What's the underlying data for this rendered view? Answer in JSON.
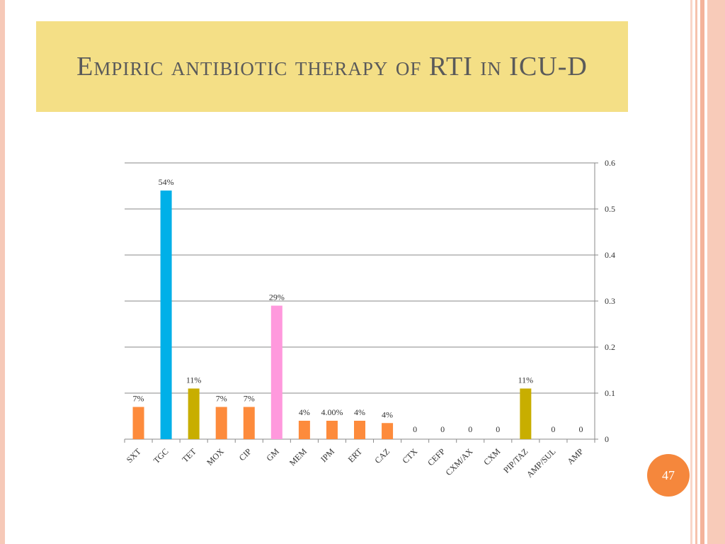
{
  "slide": {
    "title": "Empiric antibiotic therapy of RTI in ICU-D",
    "page_number": "47"
  },
  "colors": {
    "title_band": "#f4df86",
    "orange": "#fd8b3c",
    "blue": "#00b0e8",
    "olive": "#c8ae00",
    "pink": "#ff99dd",
    "badge": "#f5873c"
  },
  "chart_data": {
    "type": "bar",
    "title": "",
    "xlabel": "",
    "ylabel": "",
    "ylim": [
      0,
      0.6
    ],
    "y_ticks": [
      "0",
      "0.1",
      "0.2",
      "0.3",
      "0.4",
      "0.5",
      "0.6"
    ],
    "y_axis_side": "right",
    "gridlines": true,
    "categories": [
      "SXT",
      "TGC",
      "TET",
      "MOX",
      "CIP",
      "GM",
      "MEM",
      "IPM",
      "ERT",
      "CAZ",
      "CTX",
      "CEFP",
      "CXM/AX",
      "CXM",
      "PIP/TAZ",
      "AMP/SUL",
      "AMP"
    ],
    "values": [
      0.07,
      0.54,
      0.11,
      0.07,
      0.07,
      0.29,
      0.04,
      0.04,
      0.04,
      0.035,
      0,
      0,
      0,
      0,
      0.11,
      0,
      0
    ],
    "data_labels": [
      "7%",
      "54%",
      "11%",
      "7%",
      "7%",
      "29%",
      "4%",
      "4.00%",
      "4%",
      "4%",
      "0",
      "0",
      "0",
      "0",
      "11%",
      "0",
      "0"
    ],
    "bar_colors": [
      "orange",
      "blue",
      "olive",
      "orange",
      "orange",
      "pink",
      "orange",
      "orange",
      "orange",
      "orange",
      "orange",
      "orange",
      "orange",
      "orange",
      "olive",
      "orange",
      "orange"
    ]
  }
}
